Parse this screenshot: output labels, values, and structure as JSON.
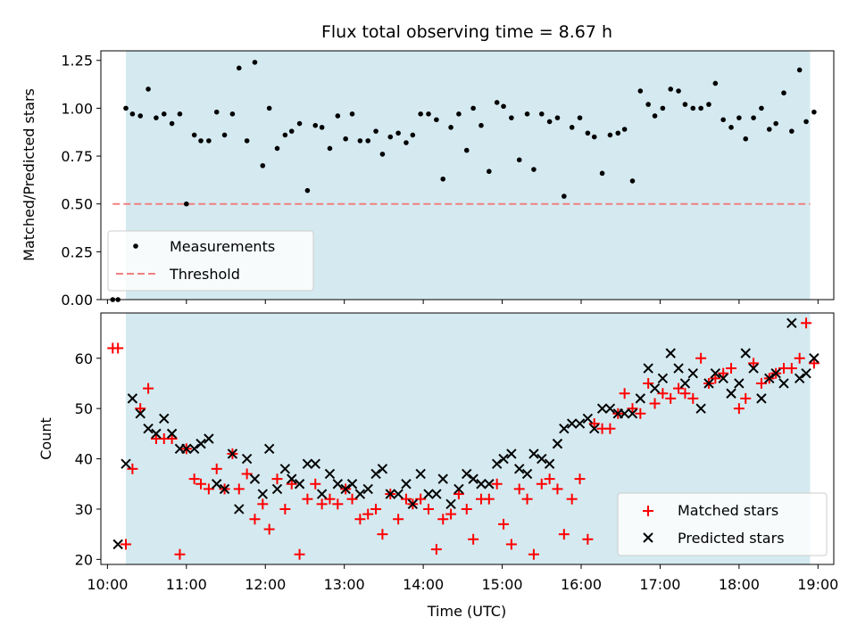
{
  "title": "Flux total observing time = 8.67 h",
  "xlabel": "Time (UTC)",
  "colors": {
    "shade": "#d4eaf0",
    "measurement": "#000000",
    "threshold": "#f08080",
    "matched": "#ff0000",
    "predicted": "#000000"
  },
  "chart_data": [
    {
      "type": "scatter",
      "panel": "top",
      "ylabel": "Matched/Predicted stars",
      "ylim": [
        0,
        1.3
      ],
      "yticks": [
        0,
        0.25,
        0.5,
        0.75,
        1.0,
        1.25
      ],
      "ytick_labels": [
        "0.00",
        "0.25",
        "0.50",
        "0.75",
        "1.00",
        "1.25"
      ],
      "xlim": [
        "09:55",
        "19:12"
      ],
      "shaded_interval": [
        "10:14",
        "18:54"
      ],
      "legend": {
        "placement": "lower-left",
        "entries": [
          {
            "label": "Measurements",
            "marker": "dot"
          },
          {
            "label": "Threshold",
            "marker": "dashed-line"
          }
        ]
      },
      "threshold": {
        "y": 0.5,
        "x": [
          "10:04",
          "18:54"
        ]
      },
      "series": [
        {
          "name": "Measurements",
          "x": [
            "10:04",
            "10:08",
            "10:14",
            "10:19",
            "10:25",
            "10:31",
            "10:37",
            "10:43",
            "10:49",
            "10:55",
            "11:00",
            "11:06",
            "11:11",
            "11:17",
            "11:23",
            "11:29",
            "11:35",
            "11:40",
            "11:46",
            "11:52",
            "11:58",
            "12:03",
            "12:09",
            "12:15",
            "12:20",
            "12:26",
            "12:32",
            "12:38",
            "12:43",
            "12:49",
            "12:55",
            "13:01",
            "13:06",
            "13:12",
            "13:18",
            "13:24",
            "13:29",
            "13:35",
            "13:41",
            "13:47",
            "13:52",
            "13:58",
            "14:04",
            "14:10",
            "14:15",
            "14:21",
            "14:27",
            "14:33",
            "14:38",
            "14:44",
            "14:50",
            "14:56",
            "15:01",
            "15:07",
            "15:13",
            "15:19",
            "15:24",
            "15:30",
            "15:36",
            "15:42",
            "15:47",
            "15:53",
            "15:59",
            "16:05",
            "16:10",
            "16:16",
            "16:22",
            "16:28",
            "16:33",
            "16:39",
            "16:45",
            "16:51",
            "16:56",
            "17:02",
            "17:08",
            "17:14",
            "17:19",
            "17:25",
            "17:31",
            "17:37",
            "17:42",
            "17:48",
            "17:54",
            "18:00",
            "18:05",
            "18:11",
            "18:17",
            "18:23",
            "18:28",
            "18:34",
            "18:40",
            "18:46",
            "18:51",
            "18:57"
          ],
          "y": [
            0.0,
            0.0,
            1.0,
            0.97,
            0.96,
            1.1,
            0.95,
            0.97,
            0.92,
            0.97,
            0.5,
            0.86,
            0.83,
            0.83,
            0.98,
            0.86,
            0.97,
            1.21,
            0.83,
            1.24,
            0.7,
            1.0,
            0.79,
            0.86,
            0.88,
            0.92,
            0.57,
            0.91,
            0.9,
            0.79,
            0.96,
            0.84,
            0.97,
            0.83,
            0.83,
            0.88,
            0.76,
            0.85,
            0.87,
            0.82,
            0.86,
            0.97,
            0.97,
            0.94,
            0.63,
            0.9,
            0.97,
            0.78,
            1.0,
            0.91,
            0.67,
            1.03,
            1.01,
            0.95,
            0.73,
            0.97,
            0.68,
            0.97,
            0.93,
            0.95,
            0.54,
            0.9,
            0.95,
            0.87,
            0.85,
            0.66,
            0.86,
            0.87,
            0.89,
            0.62,
            1.09,
            1.02,
            0.96,
            1.0,
            1.1,
            1.09,
            1.02,
            1.0,
            1.0,
            1.02,
            1.13,
            0.94,
            0.9,
            0.95,
            0.84,
            0.95,
            1.0,
            0.89,
            0.92,
            1.08,
            0.88,
            1.2,
            0.93,
            0.98
          ]
        }
      ]
    },
    {
      "type": "scatter",
      "panel": "bottom",
      "ylabel": "Count",
      "ylim": [
        19,
        69
      ],
      "yticks": [
        20,
        30,
        40,
        50,
        60
      ],
      "ytick_labels": [
        "20",
        "30",
        "40",
        "50",
        "60"
      ],
      "xlim": [
        "09:55",
        "19:12"
      ],
      "xticks": [
        "10:00",
        "11:00",
        "12:00",
        "13:00",
        "14:00",
        "15:00",
        "16:00",
        "17:00",
        "18:00",
        "19:00"
      ],
      "shaded_interval": [
        "10:14",
        "18:54"
      ],
      "legend": {
        "placement": "lower-right",
        "entries": [
          {
            "label": "Matched stars",
            "marker": "plus"
          },
          {
            "label": "Predicted stars",
            "marker": "x"
          }
        ]
      },
      "series": [
        {
          "name": "Matched stars",
          "marker": "plus",
          "x": [
            "10:04",
            "10:08",
            "10:14",
            "10:19",
            "10:25",
            "10:31",
            "10:37",
            "10:43",
            "10:49",
            "10:55",
            "11:00",
            "11:06",
            "11:11",
            "11:17",
            "11:23",
            "11:29",
            "11:35",
            "11:40",
            "11:46",
            "11:52",
            "11:58",
            "12:03",
            "12:09",
            "12:15",
            "12:20",
            "12:26",
            "12:32",
            "12:38",
            "12:43",
            "12:49",
            "12:55",
            "13:01",
            "13:06",
            "13:12",
            "13:18",
            "13:24",
            "13:29",
            "13:35",
            "13:41",
            "13:47",
            "13:52",
            "13:58",
            "14:04",
            "14:10",
            "14:15",
            "14:21",
            "14:27",
            "14:33",
            "14:38",
            "14:44",
            "14:50",
            "14:56",
            "15:01",
            "15:07",
            "15:13",
            "15:19",
            "15:24",
            "15:30",
            "15:36",
            "15:42",
            "15:47",
            "15:53",
            "15:59",
            "16:05",
            "16:10",
            "16:16",
            "16:22",
            "16:28",
            "16:33",
            "16:39",
            "16:45",
            "16:51",
            "16:56",
            "17:02",
            "17:08",
            "17:14",
            "17:19",
            "17:25",
            "17:31",
            "17:37",
            "17:42",
            "17:48",
            "17:54",
            "18:00",
            "18:05",
            "18:11",
            "18:17",
            "18:23",
            "18:28",
            "18:34",
            "18:40",
            "18:46",
            "18:51",
            "18:57"
          ],
          "y": [
            62,
            62,
            23,
            38,
            50,
            54,
            44,
            44,
            44,
            21,
            42,
            36,
            35,
            34,
            38,
            34,
            41,
            34,
            37,
            28,
            31,
            26,
            36,
            30,
            35,
            21,
            32,
            35,
            31,
            32,
            31,
            34,
            32,
            28,
            29,
            30,
            25,
            33,
            28,
            32,
            31,
            32,
            30,
            22,
            28,
            29,
            33,
            30,
            24,
            32,
            32,
            35,
            27,
            23,
            34,
            32,
            21,
            35,
            36,
            34,
            25,
            32,
            36,
            24,
            47,
            46,
            46,
            49,
            53,
            50,
            49,
            55,
            51,
            53,
            52,
            54,
            53,
            52,
            60,
            55,
            56,
            57,
            58,
            50,
            52,
            59,
            55,
            56,
            57,
            58,
            58,
            60,
            67,
            59
          ]
        },
        {
          "name": "Predicted stars",
          "marker": "x",
          "x": [
            "10:08",
            "10:14",
            "10:19",
            "10:25",
            "10:31",
            "10:37",
            "10:43",
            "10:49",
            "10:55",
            "11:00",
            "11:06",
            "11:11",
            "11:17",
            "11:23",
            "11:29",
            "11:35",
            "11:40",
            "11:46",
            "11:52",
            "11:58",
            "12:03",
            "12:09",
            "12:15",
            "12:20",
            "12:26",
            "12:32",
            "12:38",
            "12:43",
            "12:49",
            "12:55",
            "13:01",
            "13:06",
            "13:12",
            "13:18",
            "13:24",
            "13:29",
            "13:35",
            "13:41",
            "13:47",
            "13:52",
            "13:58",
            "14:04",
            "14:10",
            "14:15",
            "14:21",
            "14:27",
            "14:33",
            "14:38",
            "14:44",
            "14:50",
            "14:56",
            "15:01",
            "15:07",
            "15:13",
            "15:19",
            "15:24",
            "15:30",
            "15:36",
            "15:42",
            "15:47",
            "15:53",
            "15:59",
            "16:05",
            "16:10",
            "16:16",
            "16:22",
            "16:28",
            "16:33",
            "16:39",
            "16:45",
            "16:51",
            "16:56",
            "17:02",
            "17:08",
            "17:14",
            "17:19",
            "17:25",
            "17:31",
            "17:37",
            "17:42",
            "17:48",
            "17:54",
            "18:00",
            "18:05",
            "18:11",
            "18:17",
            "18:23",
            "18:28",
            "18:34",
            "18:40",
            "18:46",
            "18:51",
            "18:57"
          ],
          "y": [
            23,
            39,
            52,
            49,
            46,
            45,
            48,
            45,
            42,
            42,
            42,
            43,
            44,
            35,
            34,
            41,
            30,
            40,
            36,
            33,
            42,
            34,
            38,
            36,
            35,
            39,
            39,
            33,
            37,
            35,
            34,
            35,
            33,
            34,
            37,
            38,
            33,
            33,
            35,
            31,
            37,
            33,
            33,
            36,
            31,
            34,
            37,
            36,
            35,
            35,
            39,
            40,
            41,
            38,
            37,
            41,
            40,
            39,
            43,
            46,
            47,
            47,
            48,
            46,
            50,
            50,
            49,
            49,
            49,
            52,
            58,
            54,
            56,
            61,
            58,
            55,
            57,
            50,
            55,
            57,
            56,
            53,
            55,
            61,
            58,
            52,
            56,
            57,
            55,
            67,
            56,
            57,
            60
          ]
        }
      ]
    }
  ]
}
